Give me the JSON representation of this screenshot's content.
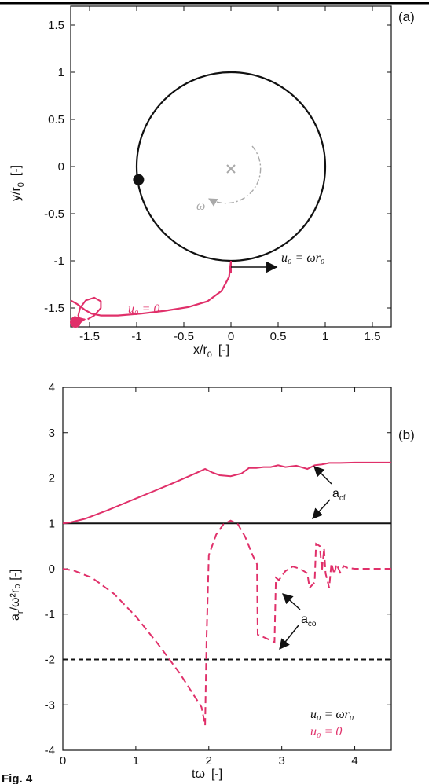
{
  "colors": {
    "black": "#111111",
    "magenta": "#e0306a",
    "gray": "#a9a9a9"
  },
  "caption": "Fig. 4",
  "chart_data": [
    {
      "type": "line",
      "panel_label": "(a)",
      "xlabel": "x/r",
      "xlabel_sub": "0",
      "xlabel_suffix": "[-]",
      "ylabel": "y/r",
      "ylabel_sub": "0",
      "ylabel_suffix": "[-]",
      "xlim": [
        -1.7,
        1.7
      ],
      "ylim": [
        -1.7,
        1.7
      ],
      "xticks": [
        "-1.5",
        "-1",
        "-0.5",
        "0",
        "0.5",
        "1",
        "1.5"
      ],
      "yticks": [
        "-1.5",
        "-1",
        "-0.5",
        "0",
        "0.5",
        "1",
        "1.5"
      ],
      "circle": {
        "center": [
          0,
          0
        ],
        "radius": 1
      },
      "start_point": [
        -0.98,
        -0.14
      ],
      "end_point": [
        -1.65,
        -1.65
      ],
      "magenta_path": [
        [
          0,
          -1.0
        ],
        [
          -0.02,
          -1.17
        ],
        [
          -0.1,
          -1.32
        ],
        [
          -0.25,
          -1.43
        ],
        [
          -0.45,
          -1.49
        ],
        [
          -0.7,
          -1.53
        ],
        [
          -0.95,
          -1.56
        ],
        [
          -1.2,
          -1.58
        ],
        [
          -1.38,
          -1.58
        ],
        [
          -1.48,
          -1.56
        ],
        [
          -1.55,
          -1.52
        ],
        [
          -1.63,
          -1.46
        ],
        [
          -1.7,
          -1.42
        ]
      ],
      "loop_path": [
        [
          -1.52,
          -1.62
        ],
        [
          -1.45,
          -1.58
        ],
        [
          -1.38,
          -1.5
        ],
        [
          -1.38,
          -1.43
        ],
        [
          -1.45,
          -1.39
        ],
        [
          -1.54,
          -1.42
        ],
        [
          -1.6,
          -1.5
        ],
        [
          -1.62,
          -1.58
        ],
        [
          -1.6,
          -1.63
        ],
        [
          -1.55,
          -1.62
        ]
      ],
      "annotations": {
        "omega": "ω",
        "u0_omega_r0": "u₀ = ωr₀",
        "u0_zero": "u₀ = 0"
      }
    },
    {
      "type": "line",
      "panel_label": "(b)",
      "xlabel": "tω",
      "xlabel_suffix": "[-]",
      "ylabel": "a",
      "ylabel_sub": "r",
      "ylabel_suffix": "/ω²r₀  [-]",
      "xlim": [
        0,
        4.5
      ],
      "ylim": [
        -4,
        4
      ],
      "xticks": [
        "0",
        "1",
        "2",
        "3",
        "4"
      ],
      "yticks": [
        "-4",
        "-3",
        "-2",
        "-1",
        "0",
        "1",
        "2",
        "3",
        "4"
      ],
      "series": [
        {
          "name": "a_cf (u₀ = ωr₀)",
          "style": "solid",
          "color": "black",
          "x": [
            0,
            4.5
          ],
          "y": [
            1,
            1
          ]
        },
        {
          "name": "a_co (u₀ = ωr₀)",
          "style": "dashed",
          "color": "black",
          "x": [
            0,
            4.5
          ],
          "y": [
            -2,
            -2
          ]
        },
        {
          "name": "a_cf (u₀ = 0)",
          "style": "solid",
          "color": "magenta",
          "x": [
            0,
            0.1,
            0.3,
            0.6,
            0.9,
            1.2,
            1.5,
            1.8,
            1.95,
            2.05,
            2.15,
            2.3,
            2.45,
            2.55,
            2.65,
            2.75,
            2.85,
            2.95,
            3.05,
            3.2,
            3.35,
            3.45,
            3.55,
            3.65,
            3.8,
            4.0,
            4.2,
            4.5
          ],
          "y": [
            1,
            1.02,
            1.1,
            1.28,
            1.48,
            1.68,
            1.88,
            2.09,
            2.2,
            2.12,
            2.06,
            2.04,
            2.1,
            2.22,
            2.22,
            2.24,
            2.24,
            2.28,
            2.24,
            2.27,
            2.2,
            2.28,
            2.3,
            2.33,
            2.33,
            2.34,
            2.34,
            2.34
          ]
        },
        {
          "name": "a_co (u₀ = 0)",
          "style": "dashed",
          "color": "magenta",
          "x": [
            0,
            0.15,
            0.4,
            0.7,
            1.0,
            1.3,
            1.6,
            1.9,
            1.95,
            1.97,
            2.0,
            2.1,
            2.2,
            2.3,
            2.4,
            2.5,
            2.6,
            2.66,
            2.67,
            2.85,
            2.9,
            2.92,
            2.96,
            3.05,
            3.15,
            3.25,
            3.35,
            3.38,
            3.45,
            3.47,
            3.52,
            3.55,
            3.58,
            3.6,
            3.65,
            3.68,
            3.72,
            3.75,
            3.8,
            3.85,
            3.9,
            4.0,
            4.5
          ],
          "y": [
            0,
            -0.04,
            -0.2,
            -0.55,
            -1.05,
            -1.65,
            -2.3,
            -3.05,
            -3.45,
            -1.5,
            0.3,
            0.75,
            0.98,
            1.06,
            0.98,
            0.7,
            0.3,
            0.1,
            -1.45,
            -1.58,
            -1.62,
            -0.2,
            -0.25,
            -0.05,
            0.05,
            0.0,
            -0.1,
            -0.42,
            -0.3,
            0.55,
            0.5,
            -0.05,
            0.45,
            -0.1,
            -0.42,
            0.12,
            -0.12,
            0.1,
            -0.08,
            0.06,
            0.02,
            0,
            0
          ]
        }
      ],
      "annotations": {
        "a_cf": "a",
        "a_cf_sub": "cf",
        "a_co": "a",
        "a_co_sub": "co"
      },
      "legend": [
        "u₀ = ωr₀",
        "u₀ = 0"
      ],
      "legend_position": "bottom-right"
    }
  ]
}
